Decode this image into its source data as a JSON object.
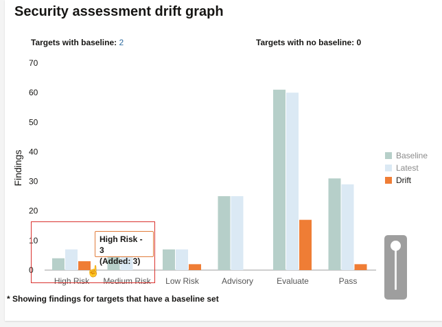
{
  "title": "Security assessment drift graph",
  "stats": {
    "with_baseline_label": "Targets with baseline:",
    "with_baseline_value": "2",
    "no_baseline_label": "Targets with no baseline:",
    "no_baseline_value": "0"
  },
  "footnote": "* Showing findings for targets that have a baseline set",
  "tooltip": {
    "line1": "High Risk - 3",
    "line2": "(Added: 3)"
  },
  "colors": {
    "baseline": "#b6cfc9",
    "latest": "#dbe9f4",
    "drift": "#ef7d35"
  },
  "chart_data": {
    "type": "bar",
    "categories": [
      "High Risk",
      "Medium Risk",
      "Low Risk",
      "Advisory",
      "Evaluate",
      "Pass"
    ],
    "series": [
      {
        "name": "Baseline",
        "values": [
          4,
          7,
          7,
          25,
          61,
          31
        ]
      },
      {
        "name": "Latest",
        "values": [
          7,
          7,
          7,
          25,
          60,
          29
        ]
      },
      {
        "name": "Drift",
        "values": [
          3,
          0,
          2,
          0,
          17,
          2
        ]
      }
    ],
    "ylabel": "Findings",
    "ylim": [
      0,
      70
    ],
    "yticks": [
      0,
      10,
      20,
      30,
      40,
      50,
      60,
      70
    ],
    "legend": "right"
  }
}
